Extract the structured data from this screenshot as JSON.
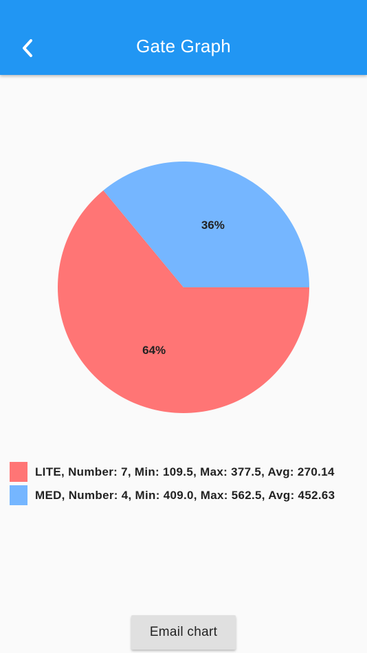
{
  "appbar": {
    "title": "Gate Graph",
    "back_icon": "chevron-left-icon",
    "color": "#2196f3"
  },
  "chart_data": {
    "type": "pie",
    "slices": [
      {
        "label": "LITE",
        "percent": 64,
        "value_label": "64%",
        "color": "#ff7575"
      },
      {
        "label": "MED",
        "percent": 36,
        "value_label": "36%",
        "color": "#75b6ff"
      }
    ]
  },
  "legend": [
    {
      "text": "LITE, Number: 7, Min: 109.5, Max: 377.5, Avg: 270.14",
      "color": "#ff7575"
    },
    {
      "text": "MED, Number: 4, Min: 409.0, Max: 562.5, Avg: 452.63",
      "color": "#75b6ff"
    }
  ],
  "email_button": {
    "label": "Email chart"
  }
}
